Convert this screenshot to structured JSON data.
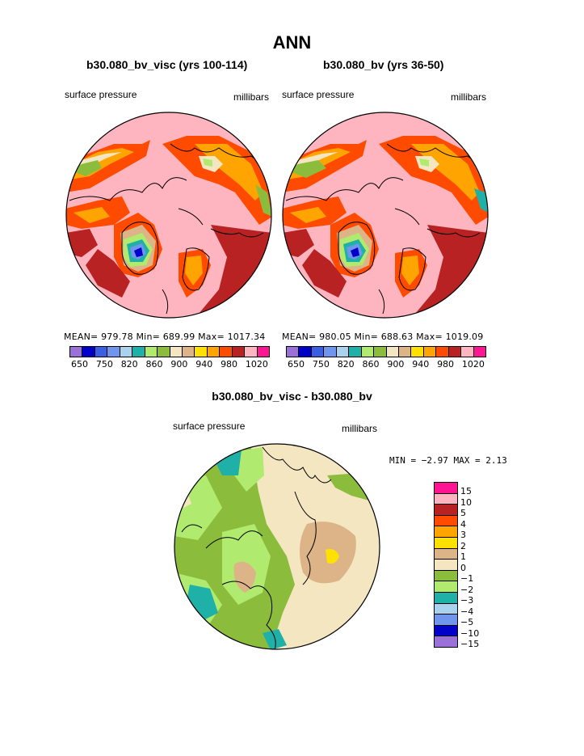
{
  "figure": {
    "title": "ANN",
    "bottom_title": "b30.080_bv_visc - b30.080_bv"
  },
  "panels": [
    {
      "subtitle": "b30.080_bv_visc (yrs 100-114)",
      "left_label": "surface pressure",
      "right_label": "millibars",
      "stats": "MEAN= 979.78   Min= 689.99   Max= 1017.34"
    },
    {
      "subtitle": "b30.080_bv (yrs 36-50)",
      "left_label": "surface pressure",
      "right_label": "millibars",
      "stats": "MEAN= 980.05   Min= 688.63   Max= 1019.09"
    },
    {
      "left_label": "surface pressure",
      "right_label": "millibars",
      "stats": "MIN =   −2.97  MAX =    2.13"
    }
  ],
  "colorbar_abs": {
    "colors": [
      "#9a71d8",
      "#0000c8",
      "#3b5fe0",
      "#6f95ec",
      "#a8d2ee",
      "#1fb0a8",
      "#b0ea6e",
      "#8cbc3c",
      "#f5e6c2",
      "#dcb487",
      "#ffe100",
      "#ffa400",
      "#ff4b00",
      "#b82222",
      "#ffb5c0",
      "#ff1493"
    ],
    "tick_labels": [
      "650",
      "750",
      "820",
      "860",
      "900",
      "940",
      "980",
      "1020"
    ]
  },
  "colorbar_diff": {
    "colors": [
      "#ff1493",
      "#ffb5c0",
      "#b82222",
      "#ff4b00",
      "#ffa400",
      "#ffe100",
      "#dcb487",
      "#f5e6c2",
      "#8cbc3c",
      "#b0ea6e",
      "#1fb0a8",
      "#a8d2ee",
      "#6f95ec",
      "#0000c8",
      "#9a71d8"
    ],
    "tick_labels": [
      "15",
      "10",
      "5",
      "4",
      "3",
      "2",
      "1",
      "0",
      "−1",
      "−2",
      "−3",
      "−4",
      "−5",
      "−10",
      "−15"
    ]
  }
}
